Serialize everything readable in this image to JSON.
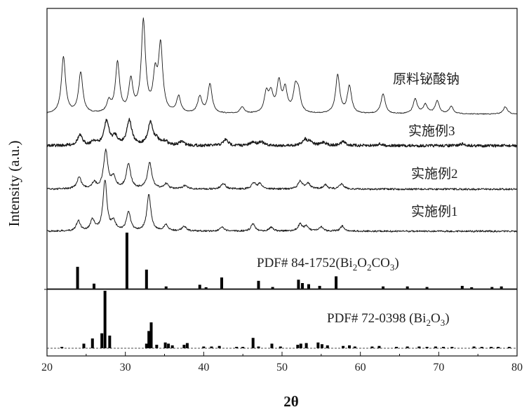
{
  "chart_data": {
    "type": "line",
    "xlabel": "2θ",
    "ylabel": "Intensity (a.u.)",
    "xlim": [
      20,
      80
    ],
    "x_ticks": [
      "20",
      "30",
      "40",
      "50",
      "60",
      "70",
      "80"
    ],
    "grid": false,
    "series": [
      {
        "name": "原料铋酸钠",
        "peaks": [
          [
            22.1,
            0.62
          ],
          [
            24.3,
            0.45
          ],
          [
            27.9,
            0.12
          ],
          [
            29.0,
            0.55
          ],
          [
            30.7,
            0.35
          ],
          [
            32.3,
            1.0
          ],
          [
            33.8,
            0.38
          ],
          [
            34.5,
            0.72
          ],
          [
            36.8,
            0.18
          ],
          [
            39.5,
            0.18
          ],
          [
            40.8,
            0.32
          ],
          [
            44.9,
            0.07
          ],
          [
            48.0,
            0.22
          ],
          [
            48.6,
            0.2
          ],
          [
            49.6,
            0.33
          ],
          [
            50.4,
            0.25
          ],
          [
            51.7,
            0.25
          ],
          [
            52.1,
            0.2
          ],
          [
            57.1,
            0.42
          ],
          [
            58.6,
            0.3
          ],
          [
            62.9,
            0.22
          ],
          [
            67.0,
            0.16
          ],
          [
            68.3,
            0.1
          ],
          [
            69.8,
            0.14
          ],
          [
            71.6,
            0.08
          ],
          [
            78.5,
            0.08
          ]
        ]
      },
      {
        "name": "实施例3",
        "peaks": [
          [
            24.2,
            0.3
          ],
          [
            26.0,
            0.12
          ],
          [
            27.6,
            0.72
          ],
          [
            28.7,
            0.25
          ],
          [
            30.5,
            0.75
          ],
          [
            33.2,
            0.68
          ],
          [
            34.0,
            0.15
          ],
          [
            35.1,
            0.12
          ],
          [
            37.2,
            0.12
          ],
          [
            42.8,
            0.18
          ],
          [
            46.3,
            0.1
          ],
          [
            47.3,
            0.12
          ],
          [
            52.9,
            0.18
          ],
          [
            53.6,
            0.12
          ],
          [
            55.3,
            0.1
          ],
          [
            57.8,
            0.12
          ],
          [
            62.4,
            0.05
          ],
          [
            73.0,
            0.05
          ]
        ]
      },
      {
        "name": "实施例2",
        "peaks": [
          [
            24.1,
            0.28
          ],
          [
            26.0,
            0.14
          ],
          [
            27.5,
            0.9
          ],
          [
            28.5,
            0.25
          ],
          [
            30.4,
            0.6
          ],
          [
            33.1,
            0.62
          ],
          [
            35.2,
            0.12
          ],
          [
            37.6,
            0.08
          ],
          [
            42.5,
            0.14
          ],
          [
            46.4,
            0.14
          ],
          [
            47.2,
            0.12
          ],
          [
            52.3,
            0.18
          ],
          [
            53.3,
            0.14
          ],
          [
            55.5,
            0.1
          ],
          [
            57.6,
            0.12
          ]
        ]
      },
      {
        "name": "实施例1",
        "peaks": [
          [
            24.0,
            0.2
          ],
          [
            25.8,
            0.22
          ],
          [
            27.4,
            1.0
          ],
          [
            28.5,
            0.18
          ],
          [
            30.4,
            0.38
          ],
          [
            33.0,
            0.72
          ],
          [
            35.2,
            0.12
          ],
          [
            37.5,
            0.1
          ],
          [
            42.3,
            0.08
          ],
          [
            46.3,
            0.15
          ],
          [
            48.6,
            0.08
          ],
          [
            52.3,
            0.14
          ],
          [
            53.1,
            0.1
          ],
          [
            55.0,
            0.08
          ],
          [
            57.7,
            0.1
          ]
        ]
      }
    ],
    "references": [
      {
        "label": "PDF# 84-1752(Bi",
        "sub1": "2",
        "mid": "O",
        "sub2": "2",
        "tail": "CO",
        "sub3": "3",
        "close": ")",
        "sticks": [
          [
            23.9,
            0.39
          ],
          [
            26.0,
            0.09
          ],
          [
            30.2,
            1.0
          ],
          [
            32.7,
            0.34
          ],
          [
            35.2,
            0.04
          ],
          [
            39.5,
            0.07
          ],
          [
            40.3,
            0.02
          ],
          [
            42.3,
            0.2
          ],
          [
            47.0,
            0.14
          ],
          [
            48.8,
            0.03
          ],
          [
            52.1,
            0.16
          ],
          [
            52.6,
            0.1
          ],
          [
            53.4,
            0.08
          ],
          [
            54.8,
            0.05
          ],
          [
            56.9,
            0.22
          ],
          [
            62.9,
            0.04
          ],
          [
            66.0,
            0.04
          ],
          [
            68.5,
            0.03
          ],
          [
            73.0,
            0.05
          ],
          [
            74.2,
            0.02
          ],
          [
            76.8,
            0.03
          ],
          [
            78.0,
            0.04
          ]
        ]
      },
      {
        "label": "PDF# 72-0398 (Bi",
        "sub1": "2",
        "mid": "O",
        "sub2": "3",
        "tail": "",
        "sub3": "",
        "close": ")",
        "sticks": [
          [
            21.9,
            0.02
          ],
          [
            24.7,
            0.08
          ],
          [
            25.8,
            0.17
          ],
          [
            27.0,
            0.26
          ],
          [
            27.4,
            1.0
          ],
          [
            28.0,
            0.22
          ],
          [
            32.7,
            0.08
          ],
          [
            33.0,
            0.3
          ],
          [
            33.3,
            0.45
          ],
          [
            34.0,
            0.06
          ],
          [
            35.1,
            0.1
          ],
          [
            35.5,
            0.08
          ],
          [
            36.0,
            0.05
          ],
          [
            37.5,
            0.06
          ],
          [
            37.9,
            0.09
          ],
          [
            40.0,
            0.03
          ],
          [
            41.0,
            0.03
          ],
          [
            42.0,
            0.04
          ],
          [
            44.2,
            0.02
          ],
          [
            45.0,
            0.02
          ],
          [
            46.3,
            0.18
          ],
          [
            47.0,
            0.03
          ],
          [
            48.7,
            0.08
          ],
          [
            49.8,
            0.03
          ],
          [
            52.0,
            0.06
          ],
          [
            52.4,
            0.08
          ],
          [
            53.1,
            0.09
          ],
          [
            54.6,
            0.1
          ],
          [
            55.1,
            0.07
          ],
          [
            55.8,
            0.05
          ],
          [
            57.8,
            0.04
          ],
          [
            58.6,
            0.05
          ],
          [
            59.3,
            0.03
          ],
          [
            61.5,
            0.03
          ],
          [
            62.4,
            0.04
          ],
          [
            64.6,
            0.02
          ],
          [
            66.0,
            0.03
          ],
          [
            67.5,
            0.03
          ],
          [
            68.5,
            0.02
          ],
          [
            69.6,
            0.03
          ],
          [
            70.6,
            0.02
          ],
          [
            71.7,
            0.02
          ],
          [
            74.5,
            0.03
          ],
          [
            75.5,
            0.02
          ],
          [
            76.7,
            0.02
          ],
          [
            77.6,
            0.02
          ],
          [
            79.0,
            0.02
          ]
        ]
      }
    ]
  }
}
